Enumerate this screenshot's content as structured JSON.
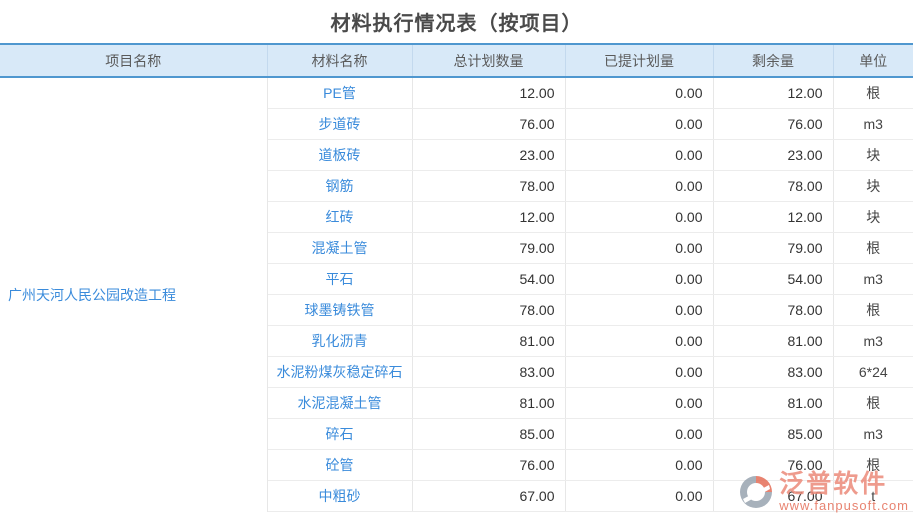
{
  "page": {
    "title": "材料执行情况表（按项目）"
  },
  "table": {
    "columns": {
      "project": "项目名称",
      "material": "材料名称",
      "total_planned": "总计划数量",
      "submitted_planned": "已提计划量",
      "remaining": "剩余量",
      "unit": "单位"
    },
    "project_name": "广州天河人民公园改造工程",
    "rows": [
      {
        "material": "PE管",
        "total": "12.00",
        "submitted": "0.00",
        "remaining": "12.00",
        "unit": "根"
      },
      {
        "material": "步道砖",
        "total": "76.00",
        "submitted": "0.00",
        "remaining": "76.00",
        "unit": "m3"
      },
      {
        "material": "道板砖",
        "total": "23.00",
        "submitted": "0.00",
        "remaining": "23.00",
        "unit": "块"
      },
      {
        "material": "钢筋",
        "total": "78.00",
        "submitted": "0.00",
        "remaining": "78.00",
        "unit": "块"
      },
      {
        "material": "红砖",
        "total": "12.00",
        "submitted": "0.00",
        "remaining": "12.00",
        "unit": "块"
      },
      {
        "material": "混凝土管",
        "total": "79.00",
        "submitted": "0.00",
        "remaining": "79.00",
        "unit": "根"
      },
      {
        "material": "平石",
        "total": "54.00",
        "submitted": "0.00",
        "remaining": "54.00",
        "unit": "m3"
      },
      {
        "material": "球墨铸铁管",
        "total": "78.00",
        "submitted": "0.00",
        "remaining": "78.00",
        "unit": "根"
      },
      {
        "material": "乳化沥青",
        "total": "81.00",
        "submitted": "0.00",
        "remaining": "81.00",
        "unit": "m3"
      },
      {
        "material": "水泥粉煤灰稳定碎石",
        "total": "83.00",
        "submitted": "0.00",
        "remaining": "83.00",
        "unit": "6*24"
      },
      {
        "material": "水泥混凝土管",
        "total": "81.00",
        "submitted": "0.00",
        "remaining": "81.00",
        "unit": "根"
      },
      {
        "material": "碎石",
        "total": "85.00",
        "submitted": "0.00",
        "remaining": "85.00",
        "unit": "m3"
      },
      {
        "material": "砼管",
        "total": "76.00",
        "submitted": "0.00",
        "remaining": "76.00",
        "unit": "根"
      },
      {
        "material": "中粗砂",
        "total": "67.00",
        "submitted": "0.00",
        "remaining": "67.00",
        "unit": "t"
      }
    ]
  },
  "watermark": {
    "brand": "泛普软件",
    "url": "www.fanpusoft.com"
  },
  "colors": {
    "header_bg": "#d8e9f8",
    "header_border": "#4f97cf",
    "link_blue": "#3a8bdb",
    "watermark_coral": "#ec8a7a"
  }
}
